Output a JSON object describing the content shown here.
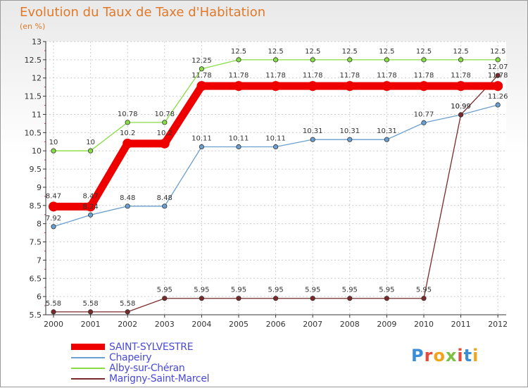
{
  "title": "Evolution du Taux de Taxe d'Habitation",
  "subtitle": "(en %)",
  "logo_text": "Proxiti",
  "chart_data": {
    "type": "line",
    "title": "Evolution du Taux de Taxe d'Habitation",
    "ylabel": "(en %)",
    "x": [
      "2000",
      "2001",
      "2002",
      "2003",
      "2004",
      "2005",
      "2006",
      "2007",
      "2008",
      "2009",
      "2010",
      "2011",
      "2012"
    ],
    "ylim": [
      5.5,
      13
    ],
    "yticks": [
      "5.5",
      "6",
      "6.5",
      "7",
      "7.5",
      "8",
      "8.5",
      "9",
      "9.5",
      "10",
      "10.5",
      "11",
      "11.5",
      "12",
      "12.5",
      "13"
    ],
    "grid": true,
    "legend_position": "bottom-left",
    "series": [
      {
        "name": "SAINT-SYLVESTRE",
        "color": "#ee0000",
        "values": [
          8.47,
          8.47,
          10.2,
          10.2,
          11.78,
          11.78,
          11.78,
          11.78,
          11.78,
          11.78,
          11.78,
          11.78,
          11.78
        ],
        "labels": [
          "8.47",
          "8.47",
          "10.2",
          "10.2",
          "11.78",
          "11.78",
          "11.78",
          "11.78",
          "11.78",
          "11.78",
          "11.78",
          "11.78",
          "11.78"
        ]
      },
      {
        "name": "Chapeiry",
        "color": "#6a9fd0",
        "values": [
          7.92,
          8.24,
          8.48,
          8.48,
          10.11,
          10.11,
          10.11,
          10.31,
          10.31,
          10.31,
          10.77,
          10.99,
          11.26
        ],
        "labels": [
          "7.92",
          "8.24",
          "8.48",
          "8.48",
          "10.11",
          "10.11",
          "10.11",
          "10.31",
          "10.31",
          "10.31",
          "10.77",
          "10.99",
          "11.26"
        ]
      },
      {
        "name": "Alby-sur-Chéran",
        "color": "#88dd44",
        "values": [
          10,
          10,
          10.78,
          10.78,
          12.25,
          12.5,
          12.5,
          12.5,
          12.5,
          12.5,
          12.5,
          12.5,
          12.5
        ],
        "labels": [
          "10",
          "10",
          "10.78",
          "10.78",
          "12.25",
          "12.5",
          "12.5",
          "12.5",
          "12.5",
          "12.5",
          "12.5",
          "12.5",
          "12.5"
        ]
      },
      {
        "name": "Marigny-Saint-Marcel",
        "color": "#7a2a2a",
        "values": [
          5.58,
          5.58,
          5.58,
          5.95,
          5.95,
          5.95,
          5.95,
          5.95,
          5.95,
          5.95,
          5.95,
          10.99,
          12.07
        ],
        "labels": [
          "5.58",
          "5.58",
          "5.58",
          "5.95",
          "5.95",
          "5.95",
          "5.95",
          "5.95",
          "5.95",
          "5.95",
          "5.95",
          "10.99",
          "12.07"
        ]
      }
    ]
  }
}
